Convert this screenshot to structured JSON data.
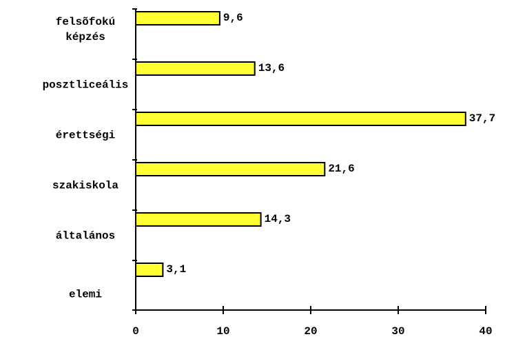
{
  "chart_data": {
    "type": "bar",
    "orientation": "horizontal",
    "categories": [
      "elemi",
      "általános",
      "szakiskola",
      "érettségi",
      "posztliceális",
      "felsõfokú képzés"
    ],
    "values": [
      3.1,
      14.3,
      21.6,
      37.7,
      13.6,
      9.6
    ],
    "data_labels": [
      "3,1",
      "14,3",
      "21,6",
      "37,7",
      "13,6",
      "9,6"
    ],
    "x_ticks": [
      0,
      10,
      20,
      30,
      40
    ],
    "x_tick_labels": [
      "0",
      "10",
      "20",
      "30",
      "40"
    ],
    "xlim": [
      0,
      40
    ],
    "title": "",
    "xlabel": "",
    "ylabel": "",
    "grid": false,
    "legend": "none",
    "bar_color": "#ffff33",
    "bar_edge_color": "#000000"
  }
}
